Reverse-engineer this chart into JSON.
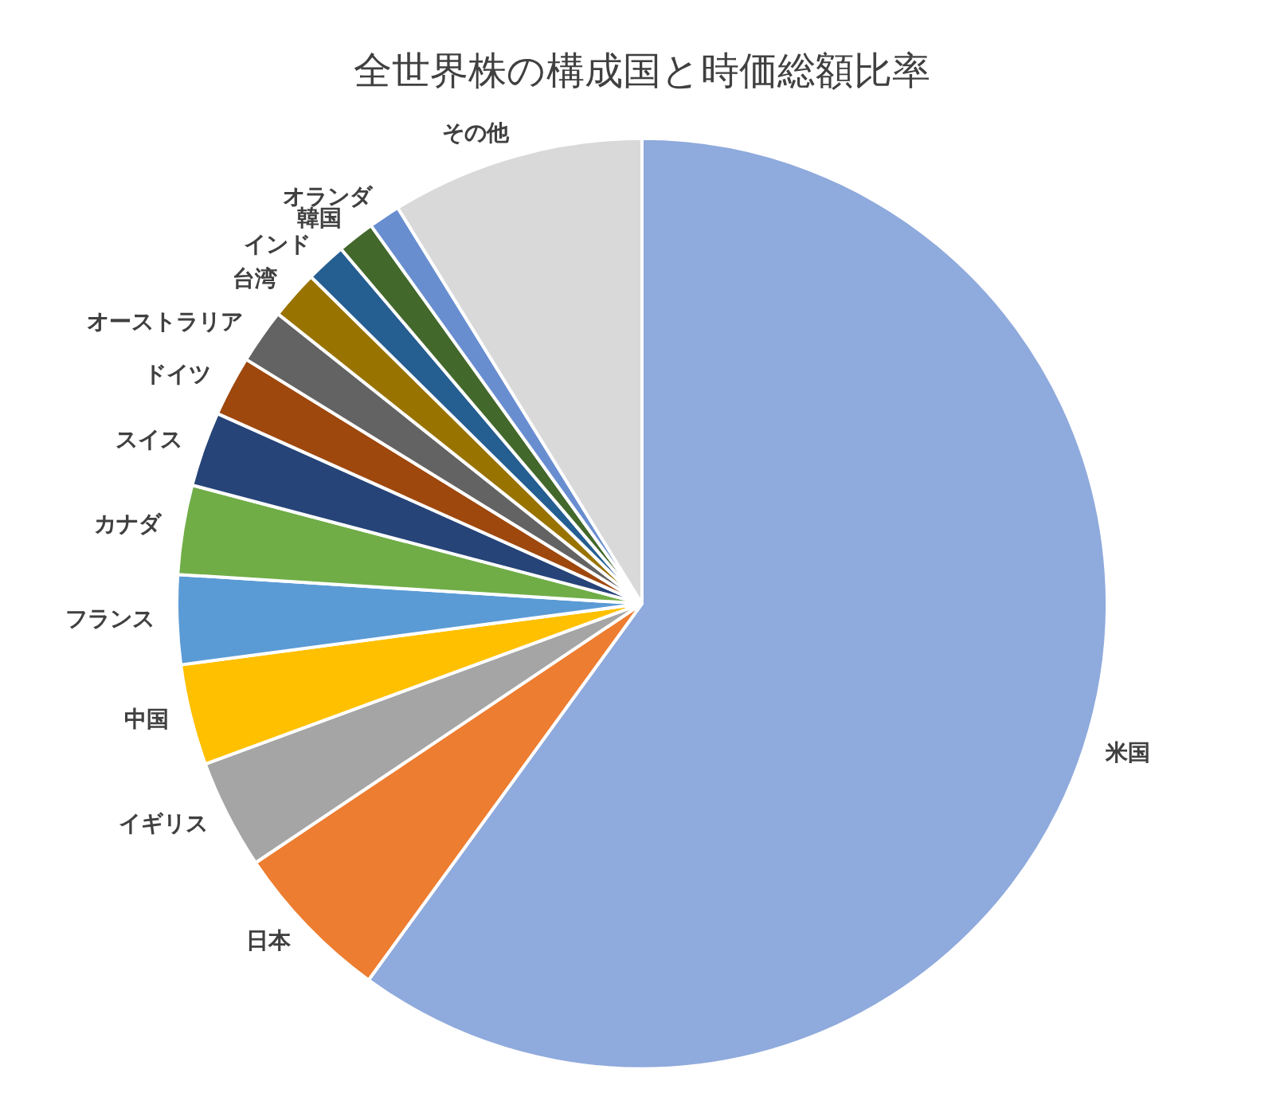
{
  "chart_data": {
    "type": "pie",
    "title": "全世界株の構成国と時価総額比率",
    "categories": [
      "米国",
      "日本",
      "イギリス",
      "中国",
      "フランス",
      "カナダ",
      "スイス",
      "ドイツ",
      "オーストラリア",
      "台湾",
      "インド",
      "韓国",
      "オランダ",
      "その他"
    ],
    "values": [
      60.0,
      5.6,
      3.8,
      3.5,
      3.1,
      3.1,
      2.6,
      2.1,
      1.9,
      1.7,
      1.4,
      1.3,
      1.1,
      8.8
    ],
    "colors": [
      "#8faadc",
      "#ed7d31",
      "#a5a5a5",
      "#ffc000",
      "#5b9bd5",
      "#70ad47",
      "#264478",
      "#9e480e",
      "#636363",
      "#997300",
      "#255e91",
      "#43682b",
      "#698ed0",
      "#d9d9d9"
    ]
  }
}
